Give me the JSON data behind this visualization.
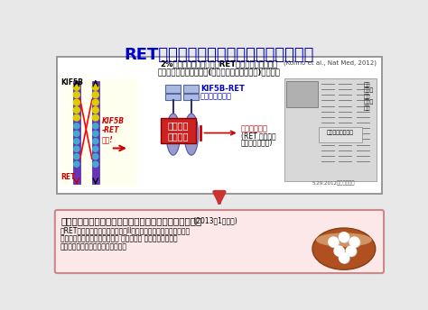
{
  "title": "RET融合遺伝子を標的とした肺がん治療",
  "title_color": "#0000cc",
  "title_fontsize": 13,
  "slide_bg": "#e8e8e8",
  "top_box_bg": "#ffffff",
  "top_box_border": "#888888",
  "text_line1": "2%の肺腺がんに存在するRET融合遺伝子を発見。",
  "text_line2": "がん化能はバンデタニブ(米国甲状腺がん治療薬)で抑制。",
  "text_ref": "(Kohno et al., Nat Med, 2012)",
  "kif5b_label": "KIF5B",
  "ret_label": "RET",
  "fusion_label": "KIF5B\n-RET\n融合!",
  "protein_label1": "KIF5B-RET",
  "protein_label2": "融合タンパク質",
  "kinase_label": "チロシン\nキナーゼ",
  "drug_label1": "バンデタニブ",
  "drug_label2": "(RET チロシン",
  "drug_label3": "キナーゼ阻害剤)",
  "newspaper_caption": "5.29.2012日本経済新聞",
  "bottom_box_bg": "#fce8e8",
  "bottom_box_border": "#cc8888",
  "bottom_title": "バンデタニブの治療効果を明らかにするための臨床試験",
  "bottom_title_suffix": "(2013年1月開始)",
  "bottom_line1": "「RET融合陽性肺がんに対する第II相バンデタニブ医師主導治験」",
  "bottom_line2": "　国立がん研究センター東病院 呼吸器内科 後藤功一グループ",
  "bottom_line3": "　薬剤無償提供：アストラゼネカ社"
}
